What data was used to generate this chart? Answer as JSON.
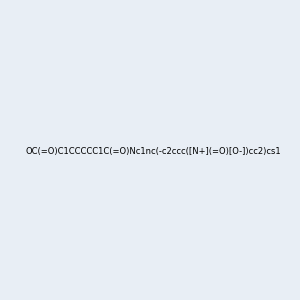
{
  "smiles": "OC(=O)C1CCCCC1C(=O)Nc1nc(-c2ccc([N+](=O)[O-])cc2)cs1",
  "image_size": 300,
  "background_color": "#e8eef5",
  "title": ""
}
